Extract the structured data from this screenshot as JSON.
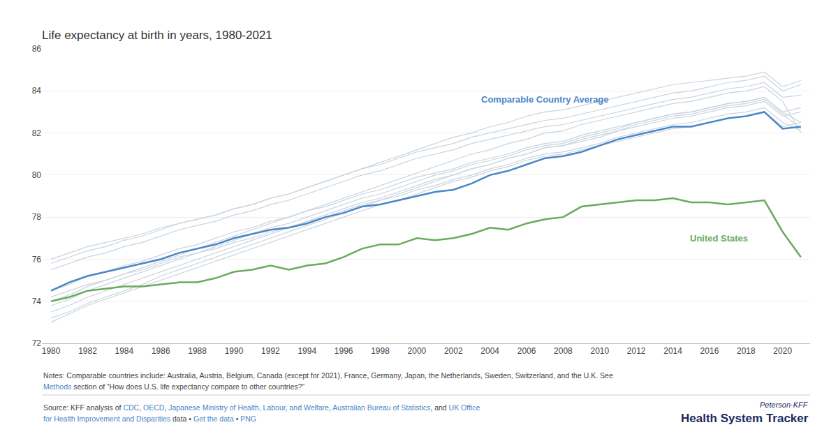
{
  "chart_data": {
    "type": "line",
    "title": "Life expectancy at birth in years, 1980-2021",
    "x": [
      1980,
      1981,
      1982,
      1983,
      1984,
      1985,
      1986,
      1987,
      1988,
      1989,
      1990,
      1991,
      1992,
      1993,
      1994,
      1995,
      1996,
      1997,
      1998,
      1999,
      2000,
      2001,
      2002,
      2003,
      2004,
      2005,
      2006,
      2007,
      2008,
      2009,
      2010,
      2011,
      2012,
      2013,
      2014,
      2015,
      2016,
      2017,
      2018,
      2019,
      2020,
      2021
    ],
    "series": [
      {
        "color": "#c8d4de",
        "values": [
          75.5,
          75.8,
          76.1,
          76.3,
          76.6,
          76.8,
          77.1,
          77.4,
          77.6,
          77.8,
          78.1,
          78.3,
          78.6,
          78.8,
          79.1,
          79.4,
          79.7,
          80.0,
          80.2,
          80.5,
          80.8,
          81.0,
          81.2,
          81.5,
          81.7,
          81.9,
          82.1,
          82.3,
          82.4,
          82.6,
          82.8,
          83.0,
          83.2,
          83.4,
          83.6,
          83.7,
          83.9,
          84.1,
          84.2,
          84.4,
          83.7,
          83.8
        ]
      },
      {
        "color": "#c8d4de",
        "values": [
          74.5,
          74.8,
          75.2,
          75.4,
          75.7,
          75.9,
          76.2,
          76.5,
          76.7,
          77.0,
          77.3,
          77.5,
          77.8,
          78.0,
          78.3,
          78.5,
          78.8,
          79.1,
          79.3,
          79.6,
          79.9,
          80.1,
          80.3,
          80.6,
          80.8,
          81.0,
          81.3,
          81.5,
          81.6,
          81.9,
          82.1,
          82.3,
          82.5,
          82.7,
          82.9,
          83.0,
          83.2,
          83.4,
          83.5,
          83.7,
          83.0,
          83.2
        ]
      },
      {
        "color": "#c8d4de",
        "values": [
          74.2,
          74.5,
          74.8,
          75.0,
          75.3,
          75.5,
          75.8,
          76.1,
          76.3,
          76.5,
          76.8,
          77.0,
          77.3,
          77.5,
          77.8,
          78.0,
          78.3,
          78.6,
          78.8,
          79.0,
          79.3,
          79.5,
          79.8,
          80.0,
          80.3,
          80.5,
          80.8,
          81.0,
          81.1,
          81.3,
          81.5,
          81.8,
          82.0,
          82.2,
          82.4,
          82.5,
          82.7,
          82.9,
          83.0,
          83.2,
          82.5,
          82.1
        ]
      },
      {
        "color": "#c8d4de",
        "values": [
          74.0,
          74.3,
          74.7,
          75.0,
          75.3,
          75.6,
          75.9,
          76.2,
          76.5,
          76.8,
          77.1,
          77.4,
          77.7,
          78.0,
          78.3,
          78.6,
          78.9,
          79.2,
          79.5,
          79.8,
          80.1,
          80.4,
          80.7,
          81.0,
          81.2,
          81.5,
          81.7,
          82.0,
          82.1,
          82.4,
          82.6,
          82.8,
          83.0,
          83.2,
          83.4,
          83.5,
          83.7,
          83.9,
          84.0,
          84.2,
          83.5,
          82.0
        ]
      },
      {
        "color": "#c8d4de",
        "values": [
          73.8,
          74.1,
          74.5,
          74.8,
          75.1,
          75.4,
          75.7,
          76.0,
          76.3,
          76.6,
          76.9,
          77.2,
          77.5,
          77.7,
          78.0,
          78.3,
          78.6,
          78.9,
          79.1,
          79.4,
          79.7,
          80.0,
          80.2,
          80.5,
          80.7,
          80.9,
          81.2,
          81.4,
          81.5,
          81.8,
          82.0,
          82.2,
          82.5,
          82.7,
          82.9,
          83.0,
          83.2,
          83.4,
          83.5,
          83.7,
          83.0,
          82.5
        ]
      },
      {
        "color": "#c8d4de",
        "values": [
          73.5,
          73.8,
          74.2,
          74.5,
          74.8,
          75.1,
          75.4,
          75.7,
          76.0,
          76.3,
          76.6,
          76.9,
          77.2,
          77.5,
          77.8,
          78.1,
          78.4,
          78.7,
          78.9,
          79.2,
          79.5,
          79.8,
          80.0,
          80.3,
          80.5,
          80.8,
          81.0,
          81.3,
          81.4,
          81.7,
          81.9,
          82.1,
          82.4,
          82.6,
          82.8,
          82.9,
          83.1,
          83.3,
          83.4,
          83.6,
          82.9,
          82.2
        ]
      },
      {
        "color": "#c8d4de",
        "values": [
          73.2,
          73.5,
          73.9,
          74.2,
          74.5,
          74.8,
          75.2,
          75.5,
          75.8,
          76.1,
          76.4,
          76.7,
          77.0,
          77.3,
          77.6,
          77.9,
          78.2,
          78.5,
          78.8,
          79.1,
          79.4,
          79.7,
          80.0,
          80.3,
          80.5,
          80.8,
          81.0,
          81.3,
          81.4,
          81.6,
          81.8,
          82.1,
          82.3,
          82.5,
          82.7,
          82.8,
          83.0,
          83.2,
          83.3,
          83.5,
          82.8,
          83.0
        ]
      },
      {
        "color": "#c8d4de",
        "values": [
          73.0,
          73.4,
          73.8,
          74.1,
          74.4,
          74.7,
          75.0,
          75.3,
          75.6,
          75.9,
          76.2,
          76.5,
          76.8,
          77.1,
          77.4,
          77.7,
          78.0,
          78.3,
          78.6,
          78.8,
          79.1,
          79.4,
          79.7,
          79.9,
          80.2,
          80.4,
          80.7,
          80.9,
          81.0,
          81.2,
          81.4,
          81.6,
          81.8,
          82.0,
          82.2,
          82.3,
          82.5,
          82.7,
          82.8,
          83.0,
          82.3,
          82.5
        ]
      },
      {
        "color": "#c8d4de",
        "values": [
          76.0,
          76.3,
          76.6,
          76.8,
          77.0,
          77.2,
          77.5,
          77.7,
          77.9,
          78.1,
          78.4,
          78.6,
          78.9,
          79.1,
          79.4,
          79.7,
          80.0,
          80.3,
          80.6,
          80.9,
          81.2,
          81.5,
          81.8,
          82.0,
          82.3,
          82.5,
          82.8,
          83.0,
          83.1,
          83.3,
          83.5,
          83.7,
          83.9,
          84.1,
          84.3,
          84.4,
          84.5,
          84.6,
          84.7,
          84.9,
          84.2,
          84.5
        ]
      },
      {
        "color": "#c8d4de",
        "values": [
          75.8,
          76.1,
          76.4,
          76.6,
          76.9,
          77.1,
          77.4,
          77.7,
          77.9,
          78.1,
          78.4,
          78.6,
          78.9,
          79.1,
          79.4,
          79.7,
          80.0,
          80.3,
          80.5,
          80.8,
          81.1,
          81.3,
          81.5,
          81.8,
          82.0,
          82.2,
          82.4,
          82.6,
          82.7,
          82.9,
          83.1,
          83.3,
          83.5,
          83.7,
          83.9,
          84.0,
          84.2,
          84.4,
          84.5,
          84.7,
          84.0,
          84.3
        ]
      },
      {
        "name": "United States",
        "color": "#6aaa5e",
        "values": [
          74.0,
          74.2,
          74.5,
          74.6,
          74.7,
          74.7,
          74.8,
          74.9,
          74.9,
          75.1,
          75.4,
          75.5,
          75.7,
          75.5,
          75.7,
          75.8,
          76.1,
          76.5,
          76.7,
          76.7,
          77.0,
          76.9,
          77.0,
          77.2,
          77.5,
          77.4,
          77.7,
          77.9,
          78.0,
          78.5,
          78.6,
          78.7,
          78.8,
          78.8,
          78.9,
          78.7,
          78.7,
          78.6,
          78.7,
          78.8,
          77.3,
          76.1
        ]
      },
      {
        "name": "Comparable Country Average",
        "color": "#4a86c8",
        "values": [
          74.5,
          74.9,
          75.2,
          75.4,
          75.6,
          75.8,
          76.0,
          76.3,
          76.5,
          76.7,
          77.0,
          77.2,
          77.4,
          77.5,
          77.7,
          78.0,
          78.2,
          78.5,
          78.6,
          78.8,
          79.0,
          79.2,
          79.3,
          79.6,
          80.0,
          80.2,
          80.5,
          80.8,
          80.9,
          81.1,
          81.4,
          81.7,
          81.9,
          82.1,
          82.3,
          82.3,
          82.5,
          82.7,
          82.8,
          83.0,
          82.2,
          82.3
        ]
      }
    ],
    "xlim": [
      1979.5,
      2021.5
    ],
    "xticks": [
      1980,
      1982,
      1984,
      1986,
      1988,
      1990,
      1992,
      1994,
      1996,
      1998,
      2000,
      2002,
      2004,
      2006,
      2008,
      2010,
      2012,
      2014,
      2016,
      2018,
      2020
    ],
    "ylim": [
      72,
      86
    ],
    "yticks": [
      72,
      74,
      76,
      78,
      80,
      82,
      84,
      86
    ],
    "grid": "y",
    "legend": false,
    "annotations": [
      {
        "text": "Comparable Country Average",
        "x": 2007,
        "y": 83.6,
        "color": "#4a86c8"
      },
      {
        "text": "United States",
        "x": 2016.5,
        "y": 77.0,
        "color": "#6aaa5e"
      }
    ],
    "notes": [
      [
        {
          "text": "Notes: Comparable countries include: Australia, Austria, Belgium, Canada (except for 2021), France, Germany, Japan, the Netherlands, Sweden, Switzerland, and the U.K. See",
          "color": "#444444"
        }
      ],
      [
        {
          "text": "Methods ",
          "color": "#4a86c8"
        },
        {
          "text": "section of “How does U.S. life expectancy compare to other countries?”",
          "color": "#444444"
        }
      ],
      [
        {
          "text": "Source: KFF analysis of ",
          "color": "#444444"
        },
        {
          "text": "CDC",
          "color": "#4a86c8"
        },
        {
          "text": ", ",
          "color": "#444444"
        },
        {
          "text": "OECD",
          "color": "#4a86c8"
        },
        {
          "text": ", ",
          "color": "#444444"
        },
        {
          "text": "Japanese Ministry of Health, Labour, and Welfare",
          "color": "#4a86c8"
        },
        {
          "text": ", ",
          "color": "#444444"
        },
        {
          "text": "Australian Bureau of Statistics",
          "color": "#4a86c8"
        },
        {
          "text": ", and ",
          "color": "#444444"
        },
        {
          "text": "UK Office",
          "color": "#4a86c8"
        }
      ],
      [
        {
          "text": "for Health Improvement and Disparities",
          "color": "#4a86c8"
        },
        {
          "text": " data • ",
          "color": "#444444"
        },
        {
          "text": "Get the data",
          "color": "#4a86c8"
        },
        {
          "text": " • ",
          "color": "#444444"
        },
        {
          "text": "PNG",
          "color": "#4a86c8"
        }
      ]
    ],
    "branding": {
      "top": "Peterson·KFF",
      "bottom": "Health System Tracker",
      "color": "#1a2a5e"
    }
  }
}
